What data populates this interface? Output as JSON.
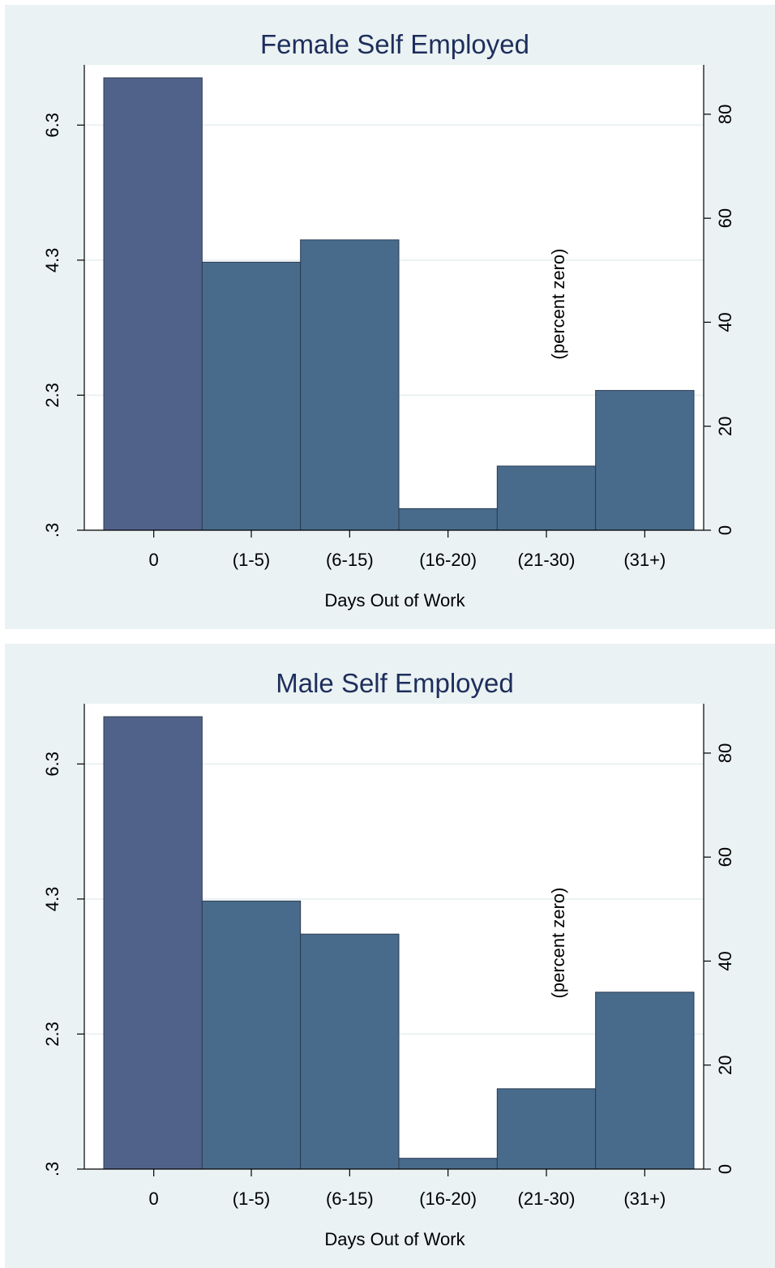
{
  "colors": {
    "background": "#eaf2f3",
    "plot_region": "#ffffff",
    "grid": "#eaf2f3",
    "bar_zero": "#51628a",
    "bar_other": "#486b8c",
    "title": "#1e2e5c"
  },
  "chart_data": [
    {
      "type": "bar",
      "title": "Female Self Employed",
      "xlabel": "Days Out of Work",
      "categories": [
        "0",
        "(1-5)",
        "(6-15)",
        "(16-20)",
        "(21-30)",
        "(31+)"
      ],
      "values_left_axis": [
        7.0,
        4.27,
        4.6,
        0.62,
        1.25,
        2.37
      ],
      "values_right_axis_percent": [
        87,
        51,
        55.5,
        4,
        12.2,
        26.5
      ],
      "left_axis": {
        "ticks": [
          "6.3",
          "4.3",
          "2.3",
          ".3"
        ],
        "tick_values": [
          6.3,
          4.3,
          2.3,
          0.3
        ],
        "range": [
          0.3,
          7.0
        ]
      },
      "right_axis": {
        "ticks": [
          "0",
          "20",
          "40",
          "60",
          "80"
        ],
        "tick_values": [
          0,
          20,
          40,
          60,
          80
        ],
        "range": [
          0,
          87
        ]
      },
      "annotation": "(percent zero)",
      "grid": true,
      "legend": "none"
    },
    {
      "type": "bar",
      "title": "Male Self Employed",
      "xlabel": "Days Out of Work",
      "categories": [
        "0",
        "(1-5)",
        "(6-15)",
        "(16-20)",
        "(21-30)",
        "(31+)"
      ],
      "values_left_axis": [
        7.0,
        4.27,
        3.78,
        0.46,
        1.49,
        2.92
      ],
      "values_right_axis_percent": [
        87,
        51.3,
        45,
        2,
        15.4,
        33.9
      ],
      "left_axis": {
        "ticks": [
          "6.3",
          "4.3",
          "2.3",
          ".3"
        ],
        "tick_values": [
          6.3,
          4.3,
          2.3,
          0.3
        ],
        "range": [
          0.3,
          7.0
        ]
      },
      "right_axis": {
        "ticks": [
          "0",
          "20",
          "40",
          "60",
          "80"
        ],
        "tick_values": [
          0,
          20,
          40,
          60,
          80
        ],
        "range": [
          0,
          87
        ]
      },
      "annotation": "(percent zero)",
      "grid": true,
      "legend": "none"
    }
  ]
}
